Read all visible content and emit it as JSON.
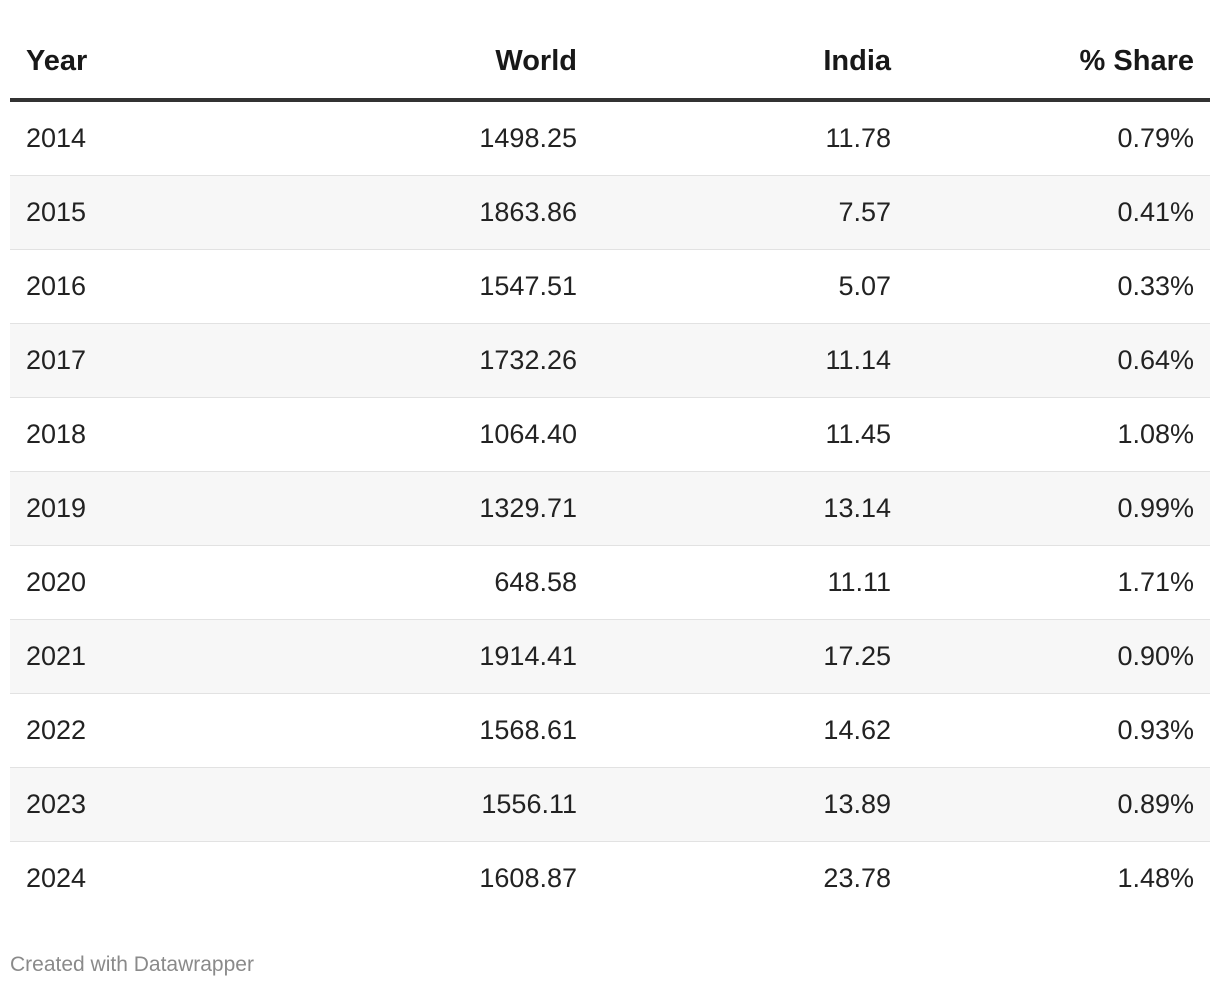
{
  "chart_data": {
    "type": "table",
    "columns": [
      "Year",
      "World",
      "India",
      "% Share"
    ],
    "rows": [
      [
        "2014",
        "1498.25",
        "11.78",
        "0.79%"
      ],
      [
        "2015",
        "1863.86",
        "7.57",
        "0.41%"
      ],
      [
        "2016",
        "1547.51",
        "5.07",
        "0.33%"
      ],
      [
        "2017",
        "1732.26",
        "11.14",
        "0.64%"
      ],
      [
        "2018",
        "1064.40",
        "11.45",
        "1.08%"
      ],
      [
        "2019",
        "1329.71",
        "13.14",
        "0.99%"
      ],
      [
        "2020",
        "648.58",
        "11.11",
        "1.71%"
      ],
      [
        "2021",
        "1914.41",
        "17.25",
        "0.90%"
      ],
      [
        "2022",
        "1568.61",
        "14.62",
        "0.93%"
      ],
      [
        "2023",
        "1556.11",
        "13.89",
        "0.89%"
      ],
      [
        "2024",
        "1608.87",
        "23.78",
        "1.48%"
      ]
    ]
  },
  "footer": {
    "credit": "Created with Datawrapper"
  },
  "colors": {
    "header_rule": "#333333",
    "row_alt_background": "#f7f7f7",
    "row_divider": "#e2e2e2",
    "footer_text": "#8a8a8a"
  }
}
